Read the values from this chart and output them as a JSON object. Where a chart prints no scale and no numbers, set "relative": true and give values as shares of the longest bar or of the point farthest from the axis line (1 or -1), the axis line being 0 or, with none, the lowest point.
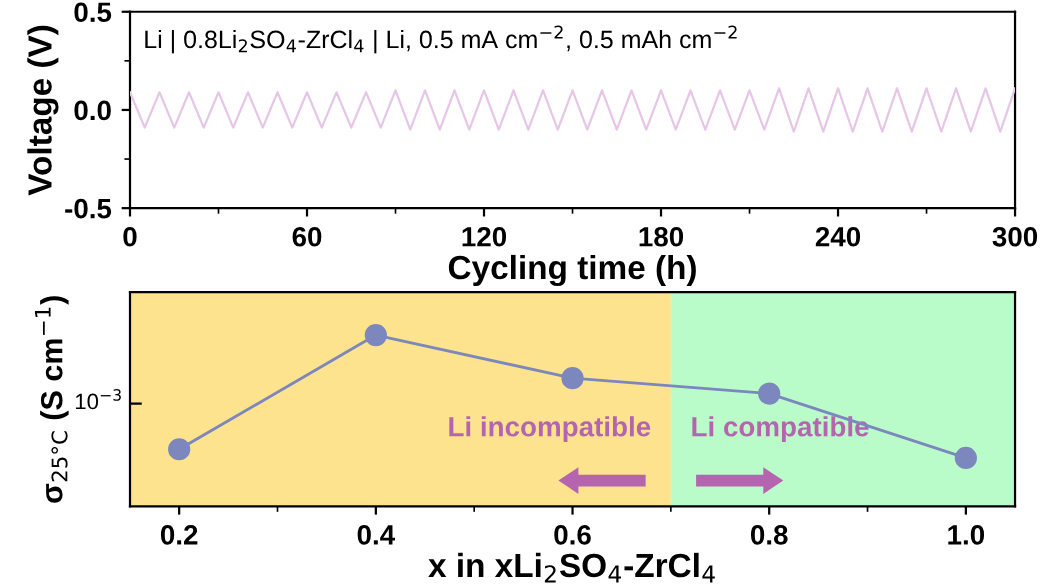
{
  "chart_data": [
    {
      "type": "line",
      "xlabel": "Cycling time (h)",
      "ylabel": "Voltage (V)",
      "annotations": [
        "Li | 0.8Li$_{2}$SO$_{4}$-ZrCl$_{4}$ | Li, 0.5 mA cm$^{−2}$, 0.5 mAh cm$^{−2}$"
      ],
      "x": [
        0,
        5,
        10,
        15,
        20,
        25,
        30,
        35,
        40,
        45,
        50,
        55,
        60,
        65,
        70,
        75,
        80,
        85,
        90,
        95,
        100,
        105,
        110,
        115,
        120,
        125,
        130,
        135,
        140,
        145,
        150,
        155,
        160,
        165,
        170,
        175,
        180,
        185,
        190,
        195,
        200,
        205,
        210,
        215,
        220,
        225,
        230,
        235,
        240,
        245,
        250,
        255,
        260,
        265,
        270,
        275,
        280,
        285,
        290,
        295,
        300
      ],
      "series": [
        {
          "color": "#e6c6e6",
          "values": [
            0.09,
            -0.09,
            0.09,
            -0.09,
            0.09,
            -0.09,
            0.09,
            -0.09,
            0.09,
            -0.09,
            0.09,
            -0.09,
            0.09,
            -0.09,
            0.09,
            -0.09,
            0.09,
            -0.09,
            0.1,
            -0.1,
            0.1,
            -0.1,
            0.1,
            -0.1,
            0.1,
            -0.1,
            0.1,
            -0.1,
            0.1,
            -0.1,
            0.1,
            -0.1,
            0.1,
            -0.1,
            0.1,
            -0.1,
            0.1,
            -0.1,
            0.1,
            -0.1,
            0.1,
            -0.1,
            0.1,
            -0.1,
            0.11,
            -0.11,
            0.11,
            -0.11,
            0.11,
            -0.11,
            0.11,
            -0.11,
            0.11,
            -0.11,
            0.11,
            -0.11,
            0.11,
            -0.11,
            0.11,
            -0.11,
            0.11
          ]
        }
      ],
      "xlim": [
        0,
        300
      ],
      "xticks": [
        0,
        60,
        120,
        180,
        240,
        300
      ],
      "ylim": [
        -0.5,
        0.5
      ],
      "yticks": [
        {
          "value": -0.5,
          "label": "-0.5"
        },
        {
          "value": 0,
          "label": "0.0"
        },
        {
          "value": 0.5,
          "label": "0.5"
        }
      ],
      "grid": false,
      "legend": false,
      "marker": "none",
      "line_style": "solid"
    },
    {
      "type": "line",
      "relative": true,
      "xlabel": "x in xLi$_{2}$SO$_{4}$-ZrCl$_{4}$",
      "ylabel": "σ$_{25°C}$ (S cm$^{−1}$)",
      "annotations": [
        "10$^{−3}$"
      ],
      "x": [
        0.2,
        0.4,
        0.6,
        0.8,
        1.0
      ],
      "series": [
        {
          "color": "#7c87bd",
          "values": [
            0.333,
            1,
            0.748,
            0.658,
            0.282
          ]
        }
      ],
      "xlim": [
        0.15,
        1.05
      ],
      "xticks": [
        {
          "value": 0.2,
          "label": "0.2"
        },
        {
          "value": 0.4,
          "label": "0.4"
        },
        {
          "value": 0.6,
          "label": "0.6"
        },
        {
          "value": 0.8,
          "label": "0.8"
        },
        {
          "value": 1.0,
          "label": "1.0"
        }
      ],
      "bands": [
        {
          "axis": "x",
          "from": 0.15,
          "to": 0.7,
          "label": "Li incompatible",
          "color": "#fde38d"
        },
        {
          "axis": "x",
          "from": 0.7,
          "to": 1.05,
          "label": "Li compatible",
          "color": "#bafbca"
        }
      ],
      "grid": false,
      "legend": false,
      "marker": "circle",
      "line_style": "solid"
    }
  ]
}
